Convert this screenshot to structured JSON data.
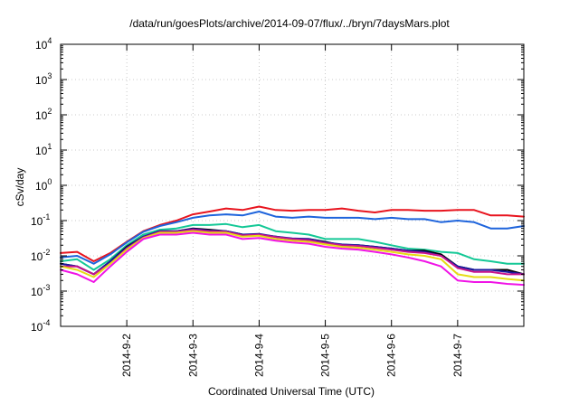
{
  "chart_data": {
    "type": "line",
    "title": "/data/run/goesPlots/archive/2014-09-07/flux/../bryn/7daysMars.plot",
    "xlabel": "Coordinated Universal Time (UTC)",
    "ylabel": "cSv/day",
    "yscale": "log",
    "ylim": [
      0.0001,
      10000
    ],
    "y_ticks": [
      {
        "base": "10",
        "exp": "-4"
      },
      {
        "base": "10",
        "exp": "-3"
      },
      {
        "base": "10",
        "exp": "-2"
      },
      {
        "base": "10",
        "exp": "-1"
      },
      {
        "base": "10",
        "exp": "0"
      },
      {
        "base": "10",
        "exp": "1"
      },
      {
        "base": "10",
        "exp": "2"
      },
      {
        "base": "10",
        "exp": "3"
      },
      {
        "base": "10",
        "exp": "4"
      }
    ],
    "x_ticks": [
      "2014-9-2",
      "2014-9-3",
      "2014-9-4",
      "2014-9-5",
      "2014-9-6",
      "2014-9-7"
    ],
    "xlim": [
      "2014-09-01 00:00",
      "2014-09-08 00:00"
    ],
    "grid": true,
    "x": [
      "2014-09-01 00:00",
      "2014-09-01 06:00",
      "2014-09-01 12:00",
      "2014-09-01 18:00",
      "2014-09-02 00:00",
      "2014-09-02 06:00",
      "2014-09-02 12:00",
      "2014-09-02 18:00",
      "2014-09-03 00:00",
      "2014-09-03 06:00",
      "2014-09-03 12:00",
      "2014-09-03 18:00",
      "2014-09-04 00:00",
      "2014-09-04 06:00",
      "2014-09-04 12:00",
      "2014-09-04 18:00",
      "2014-09-05 00:00",
      "2014-09-05 06:00",
      "2014-09-05 12:00",
      "2014-09-05 18:00",
      "2014-09-06 00:00",
      "2014-09-06 06:00",
      "2014-09-06 12:00",
      "2014-09-06 18:00",
      "2014-09-07 00:00",
      "2014-09-07 06:00",
      "2014-09-07 12:00",
      "2014-09-07 18:00",
      "2014-09-08 00:00"
    ],
    "series": [
      {
        "color": "#e8141e",
        "values": [
          0.012,
          0.013,
          0.007,
          0.012,
          0.025,
          0.05,
          0.075,
          0.1,
          0.15,
          0.18,
          0.22,
          0.2,
          0.25,
          0.2,
          0.19,
          0.2,
          0.2,
          0.22,
          0.19,
          0.17,
          0.2,
          0.2,
          0.19,
          0.19,
          0.2,
          0.2,
          0.14,
          0.14,
          0.13
        ]
      },
      {
        "color": "#1e64dc",
        "values": [
          0.009,
          0.01,
          0.006,
          0.011,
          0.024,
          0.048,
          0.07,
          0.09,
          0.12,
          0.14,
          0.15,
          0.14,
          0.18,
          0.13,
          0.12,
          0.13,
          0.12,
          0.12,
          0.12,
          0.11,
          0.12,
          0.11,
          0.11,
          0.09,
          0.1,
          0.09,
          0.06,
          0.06,
          0.07
        ]
      },
      {
        "color": "#14c896",
        "values": [
          0.007,
          0.008,
          0.004,
          0.008,
          0.02,
          0.04,
          0.055,
          0.06,
          0.075,
          0.075,
          0.08,
          0.065,
          0.075,
          0.05,
          0.045,
          0.04,
          0.03,
          0.03,
          0.03,
          0.025,
          0.02,
          0.016,
          0.015,
          0.013,
          0.012,
          0.008,
          0.007,
          0.006,
          0.006
        ]
      },
      {
        "color": "#000000",
        "values": [
          0.006,
          0.005,
          0.003,
          0.007,
          0.018,
          0.035,
          0.05,
          0.05,
          0.06,
          0.055,
          0.05,
          0.04,
          0.04,
          0.035,
          0.03,
          0.03,
          0.025,
          0.02,
          0.02,
          0.018,
          0.016,
          0.014,
          0.014,
          0.011,
          0.005,
          0.004,
          0.004,
          0.004,
          0.003
        ]
      },
      {
        "color": "#1a1aa0",
        "values": [
          0.006,
          0.005,
          0.003,
          0.007,
          0.017,
          0.035,
          0.05,
          0.05,
          0.058,
          0.052,
          0.05,
          0.04,
          0.042,
          0.035,
          0.031,
          0.03,
          0.024,
          0.021,
          0.02,
          0.018,
          0.016,
          0.014,
          0.013,
          0.01,
          0.005,
          0.004,
          0.004,
          0.0035,
          0.003
        ]
      },
      {
        "color": "#c8148c",
        "values": [
          0.005,
          0.005,
          0.003,
          0.006,
          0.016,
          0.033,
          0.048,
          0.048,
          0.055,
          0.05,
          0.048,
          0.038,
          0.04,
          0.034,
          0.03,
          0.028,
          0.023,
          0.02,
          0.019,
          0.017,
          0.015,
          0.013,
          0.012,
          0.01,
          0.0045,
          0.0035,
          0.0035,
          0.003,
          0.003
        ]
      },
      {
        "color": "#e6dc14",
        "values": [
          0.005,
          0.004,
          0.0025,
          0.006,
          0.015,
          0.032,
          0.045,
          0.045,
          0.05,
          0.045,
          0.045,
          0.035,
          0.037,
          0.03,
          0.027,
          0.025,
          0.021,
          0.018,
          0.017,
          0.015,
          0.013,
          0.011,
          0.01,
          0.008,
          0.003,
          0.0025,
          0.0025,
          0.0022,
          0.002
        ]
      },
      {
        "color": "#f014e6",
        "values": [
          0.004,
          0.003,
          0.0018,
          0.005,
          0.013,
          0.03,
          0.04,
          0.04,
          0.045,
          0.04,
          0.04,
          0.03,
          0.032,
          0.027,
          0.024,
          0.022,
          0.018,
          0.016,
          0.015,
          0.013,
          0.011,
          0.009,
          0.007,
          0.005,
          0.002,
          0.0018,
          0.0018,
          0.0016,
          0.0015
        ]
      }
    ]
  }
}
